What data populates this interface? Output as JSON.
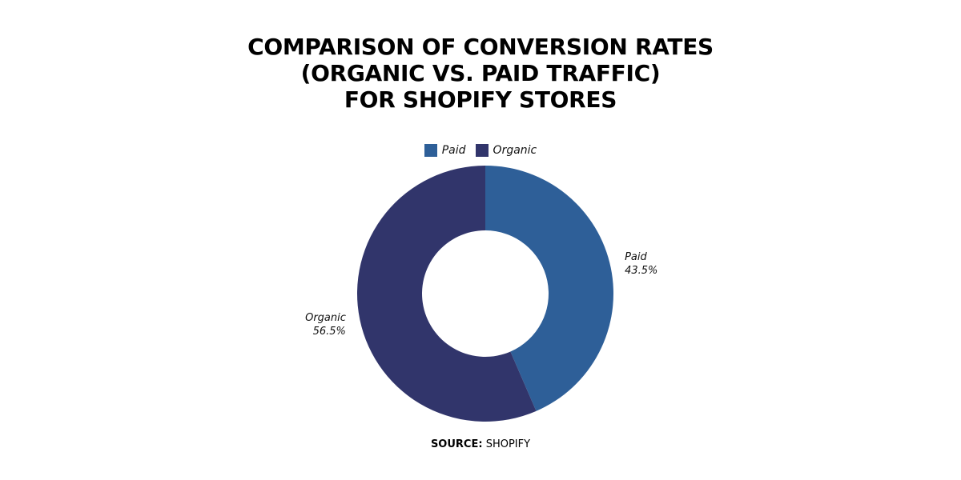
{
  "header": {
    "title_lines": [
      "COMPARISON OF CONVERSION RATES",
      "(ORGANIC VS. PAID TRAFFIC)",
      "FOR SHOPIFY STORES"
    ]
  },
  "footer": {
    "source_prefix": "SOURCE:",
    "source_value": "SHOPIFY"
  },
  "chart_data": {
    "type": "pie",
    "variant": "donut",
    "title": "COMPARISON OF CONVERSION RATES (ORGANIC VS. PAID TRAFFIC) FOR SHOPIFY STORES",
    "legend_position": "top",
    "categories": [
      "Paid",
      "Organic"
    ],
    "values": [
      43.5,
      56.5
    ],
    "value_labels": [
      "43.5%",
      "56.5%"
    ],
    "colors": [
      "#2e5f98",
      "#31356b"
    ],
    "legend": [
      {
        "label": "Paid",
        "color": "#2e5f98"
      },
      {
        "label": "Organic",
        "color": "#31356b"
      }
    ]
  }
}
